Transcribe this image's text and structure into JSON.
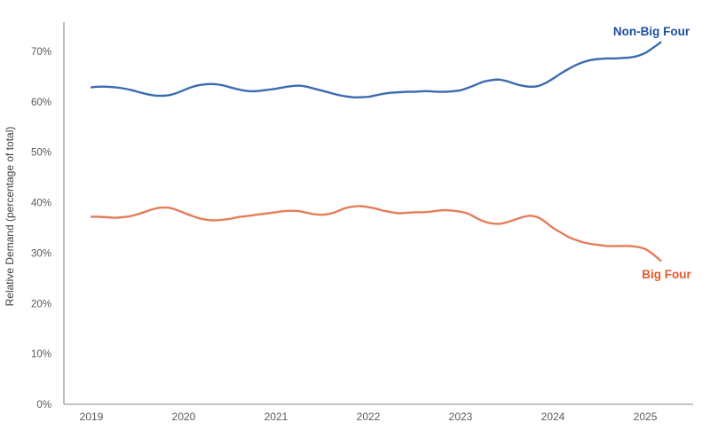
{
  "chart_data": {
    "type": "line",
    "title": "",
    "xlabel": "",
    "ylabel": "Relative Demand (percentage of total)",
    "x_unit": "month",
    "x_start": "2019-01",
    "x_end": "2025-03",
    "x_tick_labels": [
      "2019",
      "2020",
      "2021",
      "2022",
      "2023",
      "2024",
      "2025"
    ],
    "y_ticks": [
      0,
      10,
      20,
      30,
      40,
      50,
      60,
      70
    ],
    "y_tick_labels": [
      "0%",
      "10%",
      "20%",
      "30%",
      "40%",
      "50%",
      "60%",
      "70%"
    ],
    "ylim": [
      0,
      77
    ],
    "grid": false,
    "legend_position": "end-of-line-labels",
    "series": [
      {
        "name": "Non-Big Four",
        "color": "#3A6BB0",
        "label_color": "#1D4F9E",
        "values": [
          62.9,
          63.0,
          63.0,
          62.9,
          62.7,
          62.4,
          62.0,
          61.6,
          61.3,
          61.2,
          61.3,
          61.7,
          62.3,
          62.9,
          63.3,
          63.5,
          63.5,
          63.3,
          62.9,
          62.5,
          62.2,
          62.1,
          62.2,
          62.4,
          62.6,
          62.9,
          63.1,
          63.2,
          63.0,
          62.6,
          62.2,
          61.8,
          61.4,
          61.1,
          60.9,
          60.9,
          61.0,
          61.3,
          61.6,
          61.8,
          61.9,
          62.0,
          62.0,
          62.1,
          62.1,
          62.0,
          62.0,
          62.1,
          62.3,
          62.8,
          63.4,
          64.0,
          64.3,
          64.4,
          64.1,
          63.6,
          63.2,
          63.0,
          63.1,
          63.7,
          64.6,
          65.6,
          66.5,
          67.3,
          67.9,
          68.3,
          68.5,
          68.6,
          68.6,
          68.7,
          68.8,
          69.1,
          69.7,
          70.7,
          71.8
        ]
      },
      {
        "name": "Big Four",
        "color": "#E57D5A",
        "label_color": "#E2592C",
        "values": [
          37.2,
          37.2,
          37.1,
          37.0,
          37.1,
          37.3,
          37.7,
          38.2,
          38.7,
          39.0,
          39.0,
          38.6,
          38.0,
          37.4,
          36.9,
          36.6,
          36.5,
          36.6,
          36.8,
          37.1,
          37.3,
          37.5,
          37.7,
          37.9,
          38.1,
          38.3,
          38.4,
          38.3,
          38.0,
          37.7,
          37.6,
          37.8,
          38.3,
          38.9,
          39.2,
          39.3,
          39.1,
          38.8,
          38.4,
          38.1,
          37.9,
          38.0,
          38.1,
          38.1,
          38.2,
          38.4,
          38.5,
          38.4,
          38.2,
          37.8,
          37.0,
          36.3,
          35.9,
          35.8,
          36.1,
          36.6,
          37.1,
          37.4,
          37.1,
          36.2,
          35.0,
          34.1,
          33.2,
          32.6,
          32.1,
          31.8,
          31.6,
          31.4,
          31.4,
          31.4,
          31.4,
          31.2,
          30.8,
          29.8,
          28.5
        ]
      }
    ],
    "colors": {
      "axis_line": "#ADADAD",
      "tick_label": "#595959",
      "axis_title": "#3F3F3F",
      "background": "#FFFFFF"
    }
  }
}
